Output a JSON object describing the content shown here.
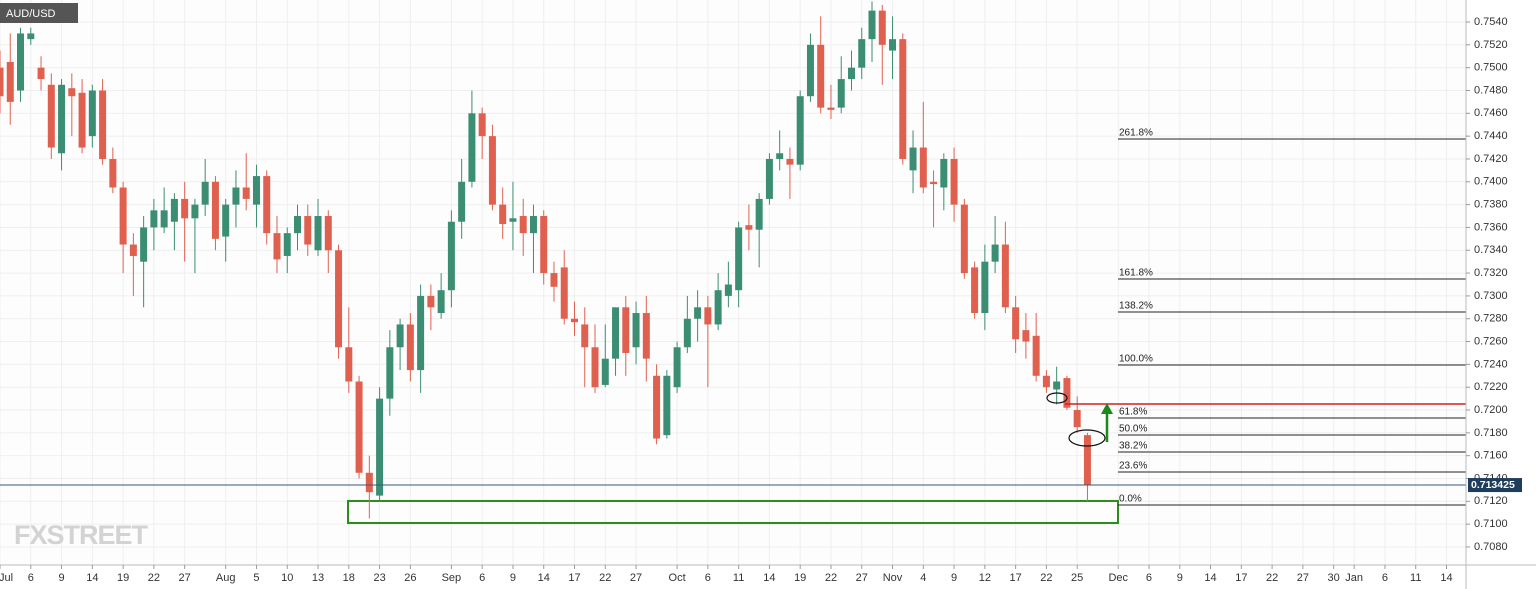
{
  "chart_data": {
    "type": "candlestick",
    "title": "AUD/USD",
    "watermark": "FXSTREET",
    "up_color": "#3b8e73",
    "down_color": "#e0604f",
    "x": [
      0,
      1,
      2,
      3,
      4,
      5,
      6,
      7,
      8,
      9,
      10,
      11,
      12,
      13,
      14,
      15,
      16,
      17,
      18,
      19,
      20,
      21,
      22,
      23,
      24,
      25,
      26,
      27,
      28,
      29,
      30,
      31,
      32,
      33,
      34,
      35,
      36,
      37,
      38,
      39,
      40,
      41,
      42,
      43,
      44,
      45,
      46,
      47,
      48,
      49,
      50,
      51,
      52,
      53,
      54,
      55,
      56,
      57,
      58,
      59,
      60,
      61,
      62,
      63,
      64,
      65,
      66,
      67,
      68,
      69,
      70,
      71,
      72,
      73,
      74,
      75,
      76,
      77,
      78,
      79,
      80,
      81,
      82,
      83,
      84,
      85,
      86,
      87,
      88,
      89,
      90,
      91,
      92,
      93,
      94,
      95,
      96,
      97,
      98,
      99,
      100,
      101,
      102,
      103,
      104,
      105,
      106
    ],
    "open": [
      0.75,
      0.7505,
      0.748,
      0.7525,
      0.75,
      0.7485,
      0.7425,
      0.7482,
      0.7478,
      0.744,
      0.748,
      0.742,
      0.7395,
      0.7345,
      0.733,
      0.736,
      0.736,
      0.7365,
      0.7385,
      0.7368,
      0.738,
      0.74,
      0.7352,
      0.738,
      0.7395,
      0.738,
      0.7405,
      0.7355,
      0.7335,
      0.7355,
      0.737,
      0.734,
      0.737,
      0.734,
      0.7255,
      0.7225,
      0.7145,
      0.7125,
      0.721,
      0.7255,
      0.7275,
      0.7235,
      0.73,
      0.7285,
      0.7305,
      0.7365,
      0.74,
      0.746,
      0.744,
      0.738,
      0.7365,
      0.737,
      0.7355,
      0.737,
      0.732,
      0.7325,
      0.728,
      0.7275,
      0.7255,
      0.7222,
      0.7245,
      0.729,
      0.7255,
      0.7285,
      0.723,
      0.7178,
      0.722,
      0.7255,
      0.728,
      0.729,
      0.7275,
      0.73,
      0.7305,
      0.7362,
      0.7358,
      0.7385,
      0.742,
      0.742,
      0.7415,
      0.7475,
      0.752,
      0.7465,
      0.7465,
      0.749,
      0.75,
      0.7525,
      0.755,
      0.7515,
      0.7525,
      0.741,
      0.743,
      0.74,
      0.7395,
      0.742,
      0.738,
      0.7325,
      0.7285,
      0.733,
      0.7345,
      0.729,
      0.727,
      0.7265,
      0.723,
      0.7218,
      0.7228,
      0.72,
      0.7178
    ],
    "high": [
      0.7515,
      0.753,
      0.7535,
      0.7535,
      0.751,
      0.7495,
      0.749,
      0.7495,
      0.749,
      0.7485,
      0.749,
      0.743,
      0.74,
      0.7355,
      0.737,
      0.7385,
      0.7395,
      0.739,
      0.74,
      0.7385,
      0.742,
      0.7405,
      0.7385,
      0.741,
      0.7425,
      0.7415,
      0.741,
      0.737,
      0.736,
      0.738,
      0.738,
      0.7385,
      0.7375,
      0.7345,
      0.729,
      0.723,
      0.716,
      0.722,
      0.727,
      0.728,
      0.7285,
      0.731,
      0.731,
      0.732,
      0.7375,
      0.742,
      0.748,
      0.7465,
      0.745,
      0.7395,
      0.74,
      0.7385,
      0.738,
      0.7375,
      0.733,
      0.734,
      0.7295,
      0.729,
      0.7275,
      0.7275,
      0.729,
      0.73,
      0.7295,
      0.73,
      0.724,
      0.7235,
      0.726,
      0.73,
      0.7305,
      0.73,
      0.732,
      0.733,
      0.7365,
      0.738,
      0.739,
      0.7425,
      0.7445,
      0.743,
      0.748,
      0.753,
      0.7545,
      0.7485,
      0.751,
      0.7515,
      0.7535,
      0.7558,
      0.7555,
      0.7545,
      0.753,
      0.7445,
      0.747,
      0.741,
      0.7425,
      0.743,
      0.7385,
      0.733,
      0.7345,
      0.737,
      0.7365,
      0.73,
      0.7285,
      0.7285,
      0.7235,
      0.7238,
      0.723,
      0.7212,
      0.718
    ],
    "low": [
      0.746,
      0.745,
      0.747,
      0.752,
      0.748,
      0.742,
      0.741,
      0.744,
      0.7425,
      0.743,
      0.7415,
      0.739,
      0.732,
      0.73,
      0.729,
      0.734,
      0.7355,
      0.734,
      0.733,
      0.732,
      0.737,
      0.734,
      0.733,
      0.736,
      0.7375,
      0.736,
      0.7345,
      0.732,
      0.732,
      0.734,
      0.7335,
      0.7335,
      0.732,
      0.7245,
      0.7215,
      0.714,
      0.7105,
      0.712,
      0.7195,
      0.7235,
      0.7225,
      0.7215,
      0.727,
      0.728,
      0.729,
      0.735,
      0.7395,
      0.742,
      0.7375,
      0.735,
      0.734,
      0.7335,
      0.732,
      0.731,
      0.7295,
      0.7275,
      0.7265,
      0.722,
      0.7215,
      0.722,
      0.723,
      0.723,
      0.724,
      0.7225,
      0.717,
      0.7175,
      0.7215,
      0.725,
      0.726,
      0.722,
      0.727,
      0.729,
      0.729,
      0.734,
      0.7325,
      0.738,
      0.741,
      0.7385,
      0.741,
      0.747,
      0.746,
      0.7455,
      0.746,
      0.748,
      0.749,
      0.7505,
      0.7485,
      0.749,
      0.7415,
      0.739,
      0.739,
      0.736,
      0.7375,
      0.7365,
      0.7315,
      0.728,
      0.727,
      0.732,
      0.7285,
      0.725,
      0.7245,
      0.7225,
      0.7215,
      0.7205,
      0.72,
      0.718,
      0.712
    ],
    "close": [
      0.7475,
      0.747,
      0.753,
      0.753,
      0.749,
      0.743,
      0.7485,
      0.7475,
      0.743,
      0.748,
      0.742,
      0.7395,
      0.7345,
      0.7335,
      0.736,
      0.7375,
      0.7375,
      0.7385,
      0.7368,
      0.738,
      0.74,
      0.735,
      0.738,
      0.7395,
      0.7385,
      0.7405,
      0.7355,
      0.7332,
      0.7355,
      0.737,
      0.7345,
      0.737,
      0.734,
      0.7255,
      0.7225,
      0.7145,
      0.7128,
      0.721,
      0.7255,
      0.7275,
      0.7235,
      0.73,
      0.729,
      0.7305,
      0.7365,
      0.74,
      0.746,
      0.744,
      0.738,
      0.7363,
      0.7368,
      0.7355,
      0.737,
      0.732,
      0.7308,
      0.728,
      0.7277,
      0.7255,
      0.722,
      0.7245,
      0.729,
      0.725,
      0.7285,
      0.7245,
      0.7175,
      0.723,
      0.7255,
      0.728,
      0.729,
      0.7275,
      0.7305,
      0.731,
      0.736,
      0.7358,
      0.7385,
      0.742,
      0.7425,
      0.7415,
      0.7475,
      0.752,
      0.7465,
      0.7463,
      0.749,
      0.75,
      0.7525,
      0.755,
      0.752,
      0.7525,
      0.742,
      0.743,
      0.7395,
      0.7398,
      0.742,
      0.738,
      0.732,
      0.7285,
      0.733,
      0.7345,
      0.729,
      0.7262,
      0.726,
      0.723,
      0.722,
      0.7225,
      0.7202,
      0.7185,
      0.7134
    ],
    "xlim": [
      0,
      142.9
    ],
    "xticks": [
      {
        "value": 0,
        "label": "Jul"
      },
      {
        "value": 3,
        "label": "6"
      },
      {
        "value": 6,
        "label": "9"
      },
      {
        "value": 9,
        "label": "14"
      },
      {
        "value": 12,
        "label": "19"
      },
      {
        "value": 15,
        "label": "22"
      },
      {
        "value": 18,
        "label": "27"
      },
      {
        "value": 22,
        "label": "Aug"
      },
      {
        "value": 25,
        "label": "5"
      },
      {
        "value": 28,
        "label": "10"
      },
      {
        "value": 31,
        "label": "13"
      },
      {
        "value": 34,
        "label": "18"
      },
      {
        "value": 37,
        "label": "23"
      },
      {
        "value": 40,
        "label": "26"
      },
      {
        "value": 44,
        "label": "Sep"
      },
      {
        "value": 47,
        "label": "6"
      },
      {
        "value": 50,
        "label": "9"
      },
      {
        "value": 53,
        "label": "14"
      },
      {
        "value": 56,
        "label": "17"
      },
      {
        "value": 59,
        "label": "22"
      },
      {
        "value": 62,
        "label": "27"
      },
      {
        "value": 66,
        "label": "Oct"
      },
      {
        "value": 69,
        "label": "6"
      },
      {
        "value": 72,
        "label": "11"
      },
      {
        "value": 75,
        "label": "14"
      },
      {
        "value": 78,
        "label": "19"
      },
      {
        "value": 81,
        "label": "22"
      },
      {
        "value": 84,
        "label": "27"
      },
      {
        "value": 87,
        "label": "Nov"
      },
      {
        "value": 90,
        "label": "4"
      },
      {
        "value": 93,
        "label": "9"
      },
      {
        "value": 96,
        "label": "12"
      },
      {
        "value": 99,
        "label": "17"
      },
      {
        "value": 102,
        "label": "22"
      },
      {
        "value": 105,
        "label": "25"
      },
      {
        "value": 109,
        "label": "Dec"
      },
      {
        "value": 112,
        "label": "6"
      },
      {
        "value": 115,
        "label": "9"
      },
      {
        "value": 118,
        "label": "14"
      },
      {
        "value": 121,
        "label": "17"
      },
      {
        "value": 124,
        "label": "22"
      },
      {
        "value": 127,
        "label": "27"
      },
      {
        "value": 130,
        "label": "30"
      },
      {
        "value": 132,
        "label": "Jan"
      },
      {
        "value": 135,
        "label": "6"
      },
      {
        "value": 138,
        "label": "11"
      },
      {
        "value": 141,
        "label": "14"
      }
    ],
    "ylim": [
      0.70642,
      0.75593
    ],
    "yticks": [
      {
        "value": 0.708,
        "label": "0.7080"
      },
      {
        "value": 0.71,
        "label": "0.7100"
      },
      {
        "value": 0.712,
        "label": "0.7120"
      },
      {
        "value": 0.714,
        "label": "0.7140"
      },
      {
        "value": 0.716,
        "label": "0.7160"
      },
      {
        "value": 0.718,
        "label": "0.7180"
      },
      {
        "value": 0.72,
        "label": "0.7200"
      },
      {
        "value": 0.722,
        "label": "0.7220"
      },
      {
        "value": 0.724,
        "label": "0.7240"
      },
      {
        "value": 0.726,
        "label": "0.7260"
      },
      {
        "value": 0.728,
        "label": "0.7280"
      },
      {
        "value": 0.73,
        "label": "0.7300"
      },
      {
        "value": 0.732,
        "label": "0.7320"
      },
      {
        "value": 0.734,
        "label": "0.7340"
      },
      {
        "value": 0.736,
        "label": "0.7360"
      },
      {
        "value": 0.738,
        "label": "0.7380"
      },
      {
        "value": 0.74,
        "label": "0.7400"
      },
      {
        "value": 0.742,
        "label": "0.7420"
      },
      {
        "value": 0.744,
        "label": "0.7440"
      },
      {
        "value": 0.746,
        "label": "0.7460"
      },
      {
        "value": 0.748,
        "label": "0.7480"
      },
      {
        "value": 0.75,
        "label": "0.7500"
      },
      {
        "value": 0.752,
        "label": "0.7520"
      },
      {
        "value": 0.754,
        "label": "0.7540"
      }
    ],
    "grid": true,
    "current_price": 0.713425,
    "resistance": 0.72053,
    "support_zone": [
      0.71203,
      0.7101
    ],
    "fib_levels": [
      {
        "label": "261.8%",
        "value": 0.74375
      },
      {
        "label": "161.8%",
        "value": 0.73148
      },
      {
        "label": "138.2%",
        "value": 0.72859
      },
      {
        "label": "100.0%",
        "value": 0.72395
      },
      {
        "label": "61.8%",
        "value": 0.7193
      },
      {
        "label": "50.0%",
        "value": 0.71781
      },
      {
        "label": "38.2%",
        "value": 0.71632
      },
      {
        "label": "23.6%",
        "value": 0.71457
      },
      {
        "label": "0.0%",
        "value": 0.71168
      }
    ]
  }
}
